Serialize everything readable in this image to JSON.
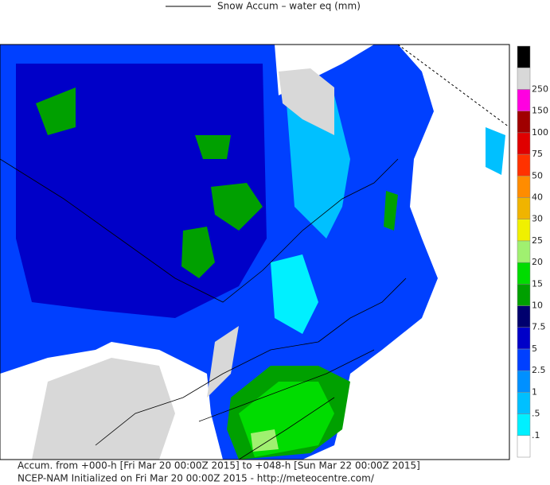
{
  "legend": {
    "title": "Snow Accum – water eq (mm)"
  },
  "colorbar": {
    "labels": [
      ".1",
      ".5",
      "1",
      "2.5",
      "5",
      "7.5",
      "10",
      "15",
      "20",
      "25",
      "30",
      "40",
      "50",
      "75",
      "100",
      "150",
      "250"
    ],
    "colors": [
      "#ffffff",
      "#00f0ff",
      "#00c0ff",
      "#0090ff",
      "#0040ff",
      "#0000c8",
      "#00006e",
      "#00a000",
      "#00dc00",
      "#a0f070",
      "#f0f000",
      "#f0b400",
      "#ff8c00",
      "#ff3200",
      "#e00000",
      "#a00000",
      "#ff00e0",
      "#d8d8d8",
      "#000000"
    ]
  },
  "footer": {
    "line1": "Accum. from +000-h [Fri Mar 20 00:00Z 2015] to +048-h [Sun Mar 22 00:00Z 2015]",
    "line2": "NCEP-NAM Initialized on Fri Mar 20 00:00Z 2015 - http://meteocentre.com/"
  }
}
